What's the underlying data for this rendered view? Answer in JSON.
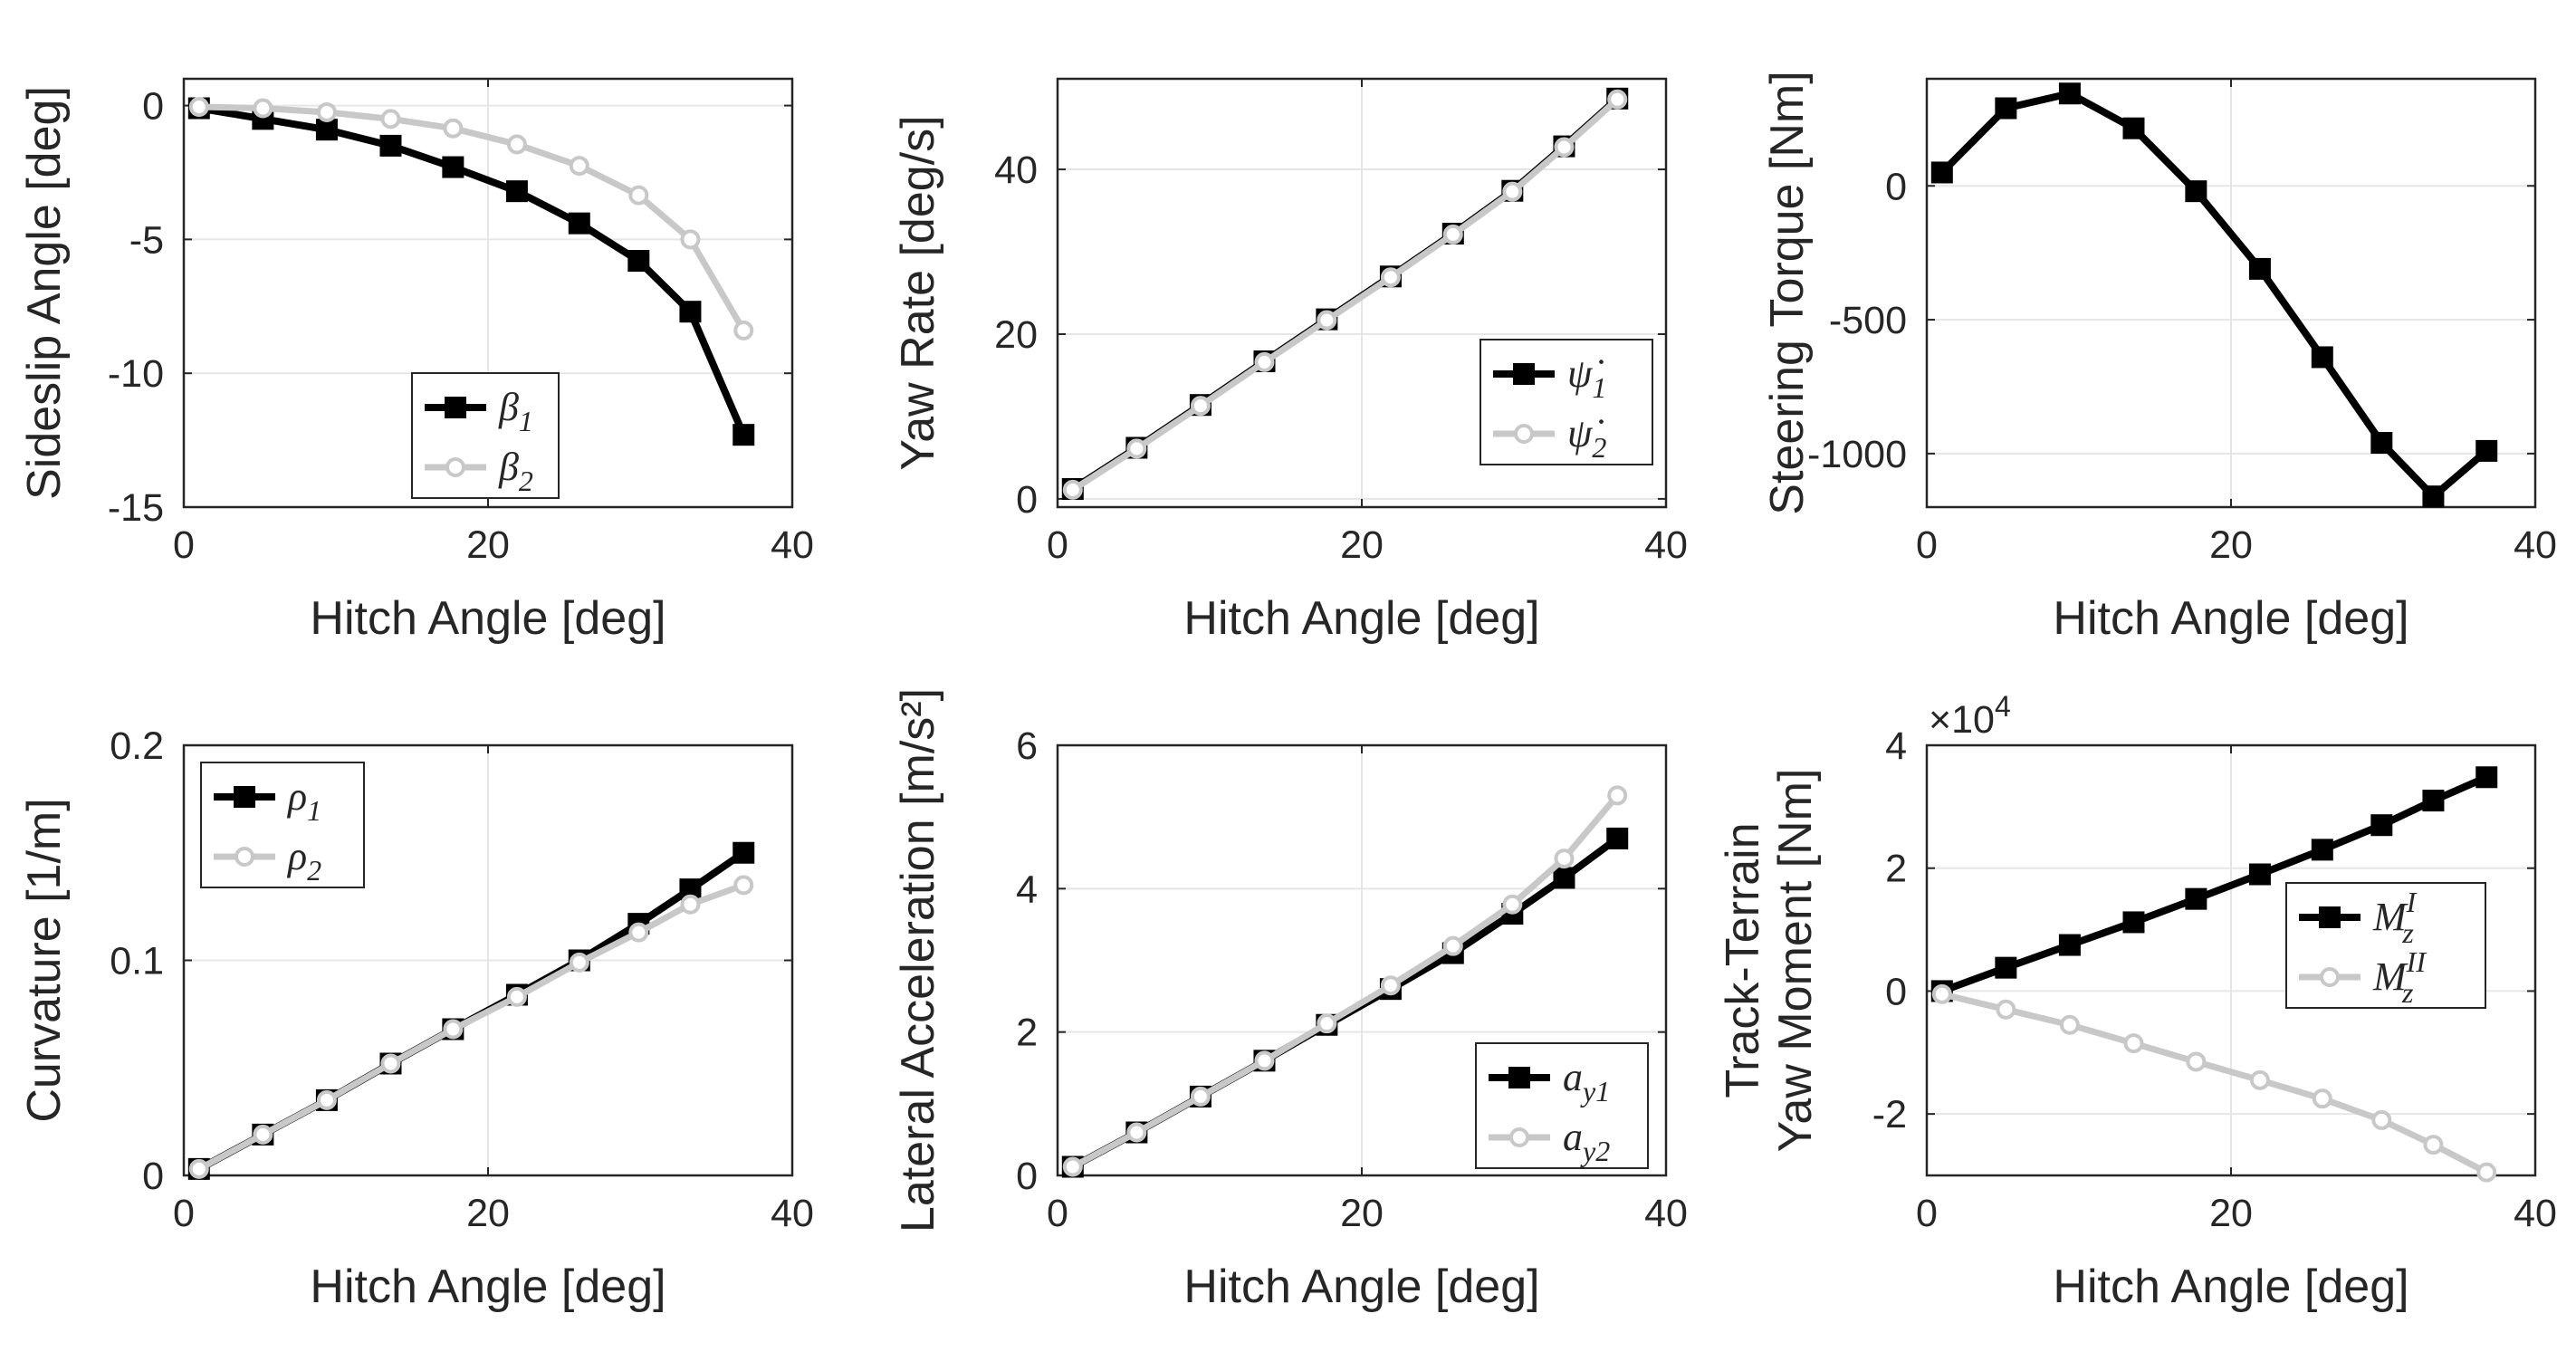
{
  "chart_data": [
    {
      "type": "line",
      "xlabel": "Hitch Angle [deg]",
      "ylabel": [
        "Sideslip Angle [deg]"
      ],
      "xlim": [
        0,
        40
      ],
      "ylim": [
        -15,
        1
      ],
      "xticks": [
        0,
        20,
        40
      ],
      "xtick_labels": [
        "0",
        "20",
        "40"
      ],
      "yticks": [
        0,
        -5,
        -10,
        -15
      ],
      "ytick_labels": [
        "0",
        "-5",
        "-10",
        "-15"
      ],
      "exponent_label": "",
      "legend_location": "lower-center",
      "x": [
        1,
        5.2,
        9.4,
        13.6,
        17.7,
        21.9,
        26,
        29.9,
        33.3,
        36.8
      ],
      "series": [
        {
          "name": "β",
          "sub": "1",
          "sup": "",
          "color": "#000000",
          "marker": "square",
          "values": [
            -0.1,
            -0.5,
            -0.9,
            -1.5,
            -2.3,
            -3.2,
            -4.4,
            -5.8,
            -7.7,
            -12.3
          ]
        },
        {
          "name": "β",
          "sub": "2",
          "sup": "",
          "color": "#c8c8c8",
          "marker": "circle",
          "values": [
            -0.05,
            -0.1,
            -0.25,
            -0.5,
            -0.85,
            -1.45,
            -2.25,
            -3.35,
            -5.0,
            -8.4
          ]
        }
      ]
    },
    {
      "type": "line",
      "xlabel": "Hitch Angle [deg]",
      "ylabel": [
        "Yaw Rate [deg/s]"
      ],
      "xlim": [
        0,
        40
      ],
      "ylim": [
        -1,
        51
      ],
      "xticks": [
        0,
        20,
        40
      ],
      "xtick_labels": [
        "0",
        "20",
        "40"
      ],
      "yticks": [
        0,
        20,
        40
      ],
      "ytick_labels": [
        "0",
        "20",
        "40"
      ],
      "exponent_label": "",
      "legend_location": "lower-right",
      "x": [
        1,
        5.2,
        9.4,
        13.6,
        17.7,
        21.9,
        26,
        29.9,
        33.3,
        36.8
      ],
      "series": [
        {
          "name": "ψ̇",
          "sub": "1",
          "sup": "",
          "color": "#000000",
          "marker": "square",
          "values": [
            1.2,
            6.2,
            11.4,
            16.7,
            21.8,
            27.0,
            32.2,
            37.4,
            42.8,
            48.6
          ]
        },
        {
          "name": "ψ̇",
          "sub": "2",
          "sup": "",
          "color": "#c8c8c8",
          "marker": "circle",
          "values": [
            1.1,
            6.1,
            11.3,
            16.6,
            21.7,
            26.9,
            32.1,
            37.3,
            42.7,
            48.5
          ]
        }
      ]
    },
    {
      "type": "line",
      "xlabel": "Hitch Angle [deg]",
      "ylabel": [
        "Steering Torque [Nm]"
      ],
      "xlim": [
        0,
        40
      ],
      "ylim": [
        -1200,
        400
      ],
      "xticks": [
        0,
        20,
        40
      ],
      "xtick_labels": [
        "0",
        "20",
        "40"
      ],
      "yticks": [
        0,
        -500,
        -1000
      ],
      "ytick_labels": [
        "0",
        "-500",
        "-1000"
      ],
      "exponent_label": "",
      "legend_location": "none",
      "x": [
        1,
        5.2,
        9.4,
        13.6,
        17.7,
        21.9,
        26,
        29.9,
        33.3,
        36.8
      ],
      "series": [
        {
          "name": "Steering Torque",
          "sub": "",
          "sup": "",
          "color": "#000000",
          "marker": "square",
          "values": [
            50,
            290,
            345,
            215,
            -20,
            -310,
            -640,
            -960,
            -1160,
            -990
          ]
        }
      ]
    },
    {
      "type": "line",
      "xlabel": "Hitch Angle [deg]",
      "ylabel": [
        "Curvature [1/m]"
      ],
      "xlim": [
        0,
        40
      ],
      "ylim": [
        0,
        0.2
      ],
      "xticks": [
        0,
        20,
        40
      ],
      "xtick_labels": [
        "0",
        "20",
        "40"
      ],
      "yticks": [
        0,
        0.1,
        0.2
      ],
      "ytick_labels": [
        "0",
        "0.1",
        "0.2"
      ],
      "exponent_label": "",
      "legend_location": "top-left",
      "x": [
        1,
        5.2,
        9.4,
        13.6,
        17.7,
        21.9,
        26,
        29.9,
        33.3,
        36.8
      ],
      "series": [
        {
          "name": "ρ",
          "sub": "1",
          "sup": "",
          "color": "#000000",
          "marker": "square",
          "values": [
            0.003,
            0.019,
            0.035,
            0.052,
            0.068,
            0.084,
            0.1,
            0.117,
            0.133,
            0.15
          ]
        },
        {
          "name": "ρ",
          "sub": "2",
          "sup": "",
          "color": "#c8c8c8",
          "marker": "circle",
          "values": [
            0.003,
            0.019,
            0.035,
            0.052,
            0.068,
            0.083,
            0.099,
            0.113,
            0.126,
            0.135
          ]
        }
      ]
    },
    {
      "type": "line",
      "xlabel": "Hitch Angle [deg]",
      "ylabel": [
        "Lateral Acceleration [m/s²]"
      ],
      "xlim": [
        0,
        40
      ],
      "ylim": [
        0,
        6
      ],
      "xticks": [
        0,
        20,
        40
      ],
      "xtick_labels": [
        "0",
        "20",
        "40"
      ],
      "yticks": [
        0,
        2,
        4,
        6
      ],
      "ytick_labels": [
        "0",
        "2",
        "4",
        "6"
      ],
      "exponent_label": "",
      "legend_location": "lower-right",
      "x": [
        1,
        5.2,
        9.4,
        13.6,
        17.7,
        21.9,
        26,
        29.9,
        33.3,
        36.8
      ],
      "series": [
        {
          "name": "a",
          "sub": "y1",
          "sup": "",
          "color": "#000000",
          "marker": "square",
          "values": [
            0.12,
            0.6,
            1.1,
            1.6,
            2.1,
            2.6,
            3.1,
            3.65,
            4.15,
            4.7
          ]
        },
        {
          "name": "a",
          "sub": "y2",
          "sup": "",
          "color": "#c8c8c8",
          "marker": "circle",
          "values": [
            0.12,
            0.6,
            1.1,
            1.6,
            2.12,
            2.65,
            3.2,
            3.78,
            4.42,
            5.3
          ]
        }
      ]
    },
    {
      "type": "line",
      "xlabel": "Hitch Angle [deg]",
      "ylabel": [
        "Track-Terrain",
        "Yaw Moment [Nm]"
      ],
      "xlim": [
        0,
        40
      ],
      "ylim": [
        -3,
        4
      ],
      "xticks": [
        0,
        20,
        40
      ],
      "xtick_labels": [
        "0",
        "20",
        "40"
      ],
      "yticks": [
        4,
        2,
        0,
        -2
      ],
      "ytick_labels": [
        "4",
        "2",
        "0",
        "-2"
      ],
      "exponent_label": "×10",
      "exponent_power": "4",
      "legend_location": "right",
      "x": [
        1,
        5.2,
        9.4,
        13.6,
        17.7,
        21.9,
        26,
        29.9,
        33.3,
        36.8
      ],
      "series": [
        {
          "name": "M",
          "sub": "z",
          "sup": "I",
          "color": "#000000",
          "marker": "square",
          "values": [
            0.0,
            0.38,
            0.75,
            1.12,
            1.5,
            1.9,
            2.3,
            2.7,
            3.1,
            3.48
          ]
        },
        {
          "name": "M",
          "sub": "z",
          "sup": "II",
          "color": "#c8c8c8",
          "marker": "circle",
          "values": [
            -0.05,
            -0.3,
            -0.55,
            -0.85,
            -1.15,
            -1.45,
            -1.75,
            -2.1,
            -2.5,
            -2.95
          ]
        }
      ]
    }
  ]
}
